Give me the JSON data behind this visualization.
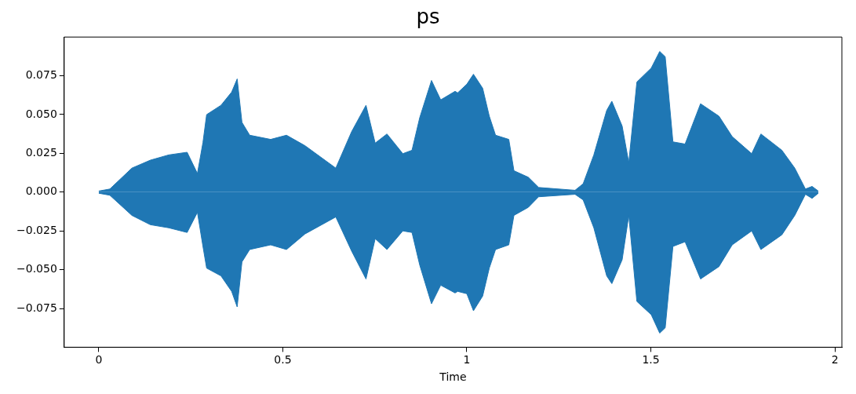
{
  "chart_data": {
    "type": "area",
    "title": "ps",
    "xlabel": "Time",
    "x": [
      0,
      0.03,
      0.09,
      0.14,
      0.19,
      0.24,
      0.268,
      0.283,
      0.293,
      0.332,
      0.361,
      0.376,
      0.389,
      0.41,
      0.467,
      0.51,
      0.56,
      0.644,
      0.687,
      0.726,
      0.751,
      0.783,
      0.826,
      0.851,
      0.872,
      0.904,
      0.929,
      0.968,
      0.975,
      1.0,
      1.018,
      1.043,
      1.061,
      1.078,
      1.114,
      1.128,
      1.167,
      1.195,
      1.294,
      1.316,
      1.345,
      1.38,
      1.394,
      1.422,
      1.44,
      1.462,
      1.501,
      1.524,
      1.539,
      1.56,
      1.593,
      1.635,
      1.685,
      1.721,
      1.774,
      1.799,
      1.856,
      1.891,
      1.92,
      1.938,
      1.955
    ],
    "series": [
      {
        "color": "#1f77b4",
        "values": [
          0.0007,
          0.002,
          0.0155,
          0.0206,
          0.024,
          0.0257,
          0.012,
          0.032,
          0.05,
          0.056,
          0.0645,
          0.073,
          0.045,
          0.0367,
          0.034,
          0.0367,
          0.03,
          0.0155,
          0.039,
          0.056,
          0.0316,
          0.0375,
          0.0248,
          0.027,
          0.048,
          0.072,
          0.0595,
          0.065,
          0.064,
          0.0696,
          0.076,
          0.067,
          0.049,
          0.0367,
          0.034,
          0.0138,
          0.0096,
          0.003,
          0.0012,
          0.0054,
          0.024,
          0.0527,
          0.0586,
          0.0426,
          0.019,
          0.071,
          0.08,
          0.0907,
          0.0873,
          0.0324,
          0.031,
          0.057,
          0.049,
          0.0358,
          0.0248,
          0.0375,
          0.027,
          0.0155,
          0.002,
          0.0037,
          0.0007
        ]
      },
      {
        "color": "#1f77b4",
        "values": [
          -0.0007,
          -0.002,
          -0.015,
          -0.021,
          -0.023,
          -0.026,
          -0.013,
          -0.035,
          -0.049,
          -0.054,
          -0.064,
          -0.074,
          -0.045,
          -0.037,
          -0.034,
          -0.037,
          -0.027,
          -0.016,
          -0.038,
          -0.056,
          -0.03,
          -0.037,
          -0.025,
          -0.026,
          -0.047,
          -0.072,
          -0.06,
          -0.065,
          -0.064,
          -0.0655,
          -0.0765,
          -0.067,
          -0.049,
          -0.037,
          -0.034,
          -0.015,
          -0.0098,
          -0.003,
          -0.0014,
          -0.005,
          -0.023,
          -0.054,
          -0.059,
          -0.0436,
          -0.015,
          -0.0705,
          -0.079,
          -0.0909,
          -0.0875,
          -0.035,
          -0.032,
          -0.056,
          -0.048,
          -0.034,
          -0.025,
          -0.037,
          -0.0275,
          -0.015,
          -0.0014,
          -0.004,
          -0.0007
        ]
      }
    ],
    "xlim": [
      -0.094,
      2.019
    ],
    "xticks": [
      0,
      0.5,
      1,
      1.5,
      2
    ],
    "ylim": [
      -0.1,
      0.1
    ],
    "yticks": [
      {
        "value": -0.075,
        "label": "−0.075"
      },
      {
        "value": -0.05,
        "label": "−0.050"
      },
      {
        "value": -0.025,
        "label": "−0.025"
      },
      {
        "value": 0,
        "label": "0.000"
      },
      {
        "value": 0.025,
        "label": "0.025"
      },
      {
        "value": 0.05,
        "label": "0.050"
      },
      {
        "value": 0.075,
        "label": "0.075"
      }
    ],
    "grid": false,
    "legend": false
  }
}
